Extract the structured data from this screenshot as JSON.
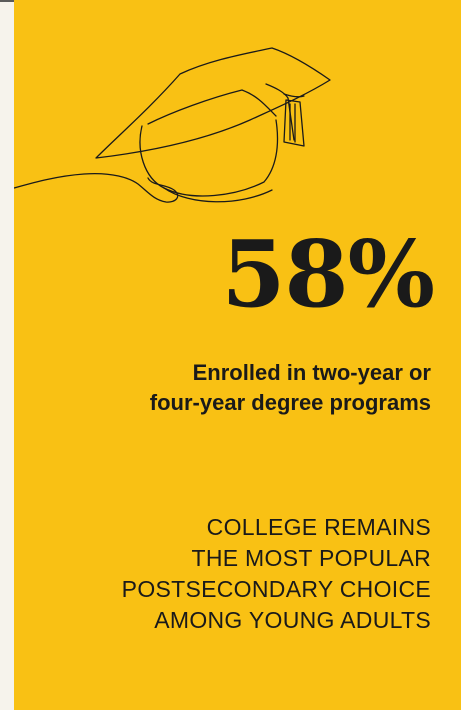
{
  "card": {
    "background": "#f9c114",
    "text_color": "#1a1a1a",
    "illustration": "graduation-cap-icon",
    "stat": "58%",
    "subtitle_lines": [
      "Enrolled in two-year or",
      "four-year degree programs"
    ],
    "caption_lines": [
      "COLLEGE REMAINS",
      "THE MOST POPULAR",
      "POSTSECONDARY CHOICE",
      "AMONG YOUNG ADULTS"
    ]
  }
}
